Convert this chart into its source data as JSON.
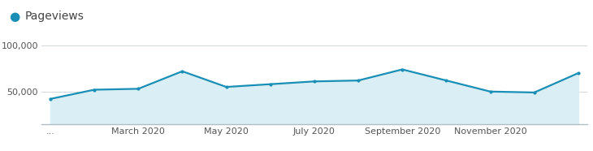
{
  "x_tick_labels": [
    "...",
    "March 2020",
    "May 2020",
    "July 2020",
    "September 2020",
    "November 2020",
    ""
  ],
  "x_tick_positions": [
    0,
    2,
    4,
    6,
    8,
    10,
    12
  ],
  "pageviews": [
    42000,
    52000,
    53000,
    72000,
    55000,
    58000,
    61000,
    62000,
    74000,
    62000,
    50000,
    49000,
    70000
  ],
  "ylim_bottom": 15000,
  "ylim_top": 110000,
  "yticks": [
    50000,
    100000
  ],
  "ytick_labels": [
    "50,000",
    "100,000"
  ],
  "line_color": "#1a8fb5",
  "fill_color": "#daeef5",
  "marker_color": "#1a8fb5",
  "background_color": "#ffffff",
  "legend_label": "Pageviews",
  "legend_dot_color": "#1a8fb5",
  "grid_color": "#d0d8dc",
  "bottom_line_color": "#b0bec5",
  "tick_fontsize": 8,
  "legend_fontsize": 10
}
